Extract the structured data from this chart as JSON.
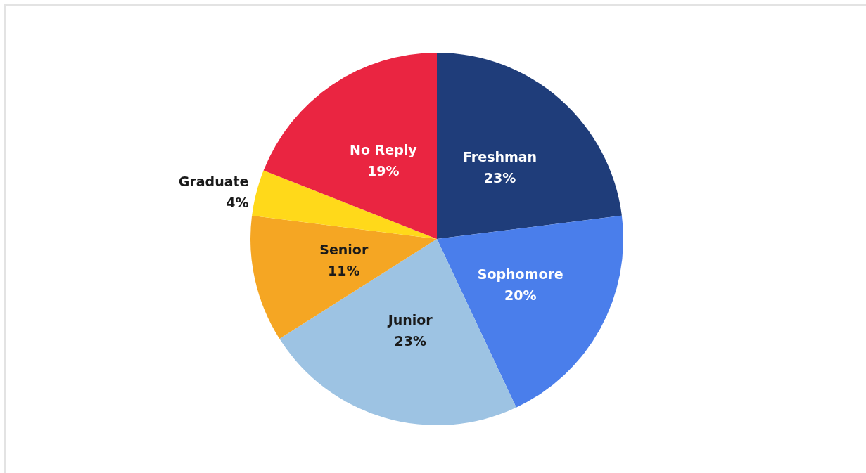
{
  "chart_data": {
    "type": "pie",
    "categories": [
      "Freshman",
      "Sophomore",
      "Junior",
      "Senior",
      "Graduate",
      "No Reply"
    ],
    "values": [
      23,
      20,
      23,
      11,
      4,
      19
    ],
    "colors": [
      "#1f3d7a",
      "#4a7eeb",
      "#9dc3e3",
      "#f5a623",
      "#ffd91a",
      "#ea2541"
    ],
    "value_labels": [
      "23%",
      "20%",
      "23%",
      "11%",
      "4%",
      "19%"
    ],
    "legend": false
  }
}
